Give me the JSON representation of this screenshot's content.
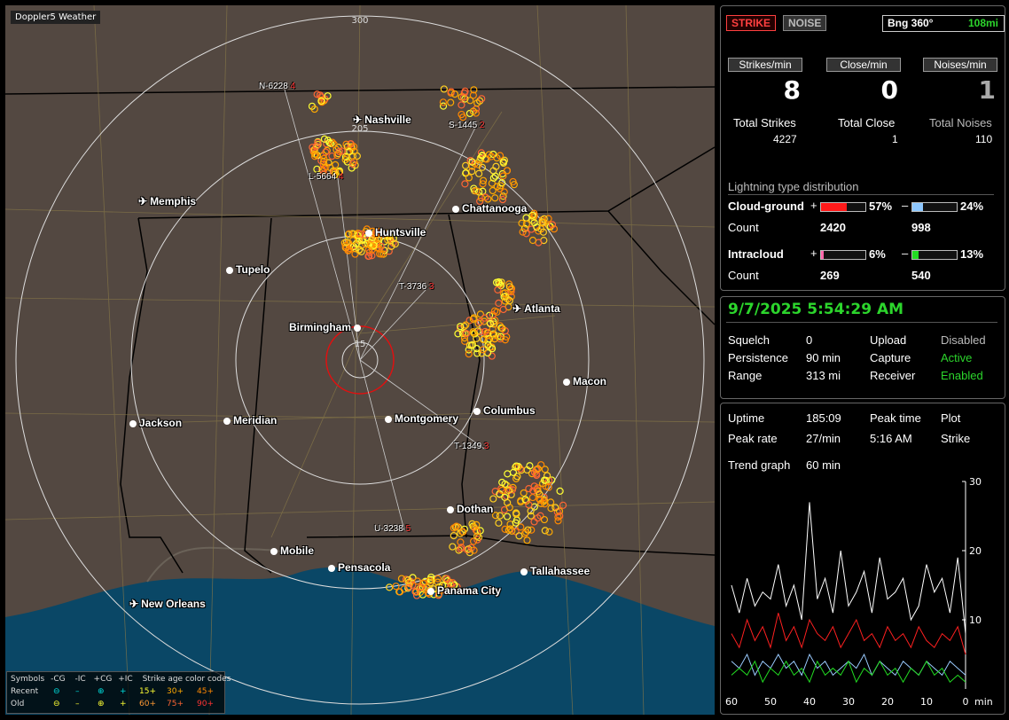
{
  "app": {
    "title": "Doppler5 Weather"
  },
  "map": {
    "range_labels": [
      "300",
      "205",
      "15"
    ],
    "cities": [
      {
        "name": "Nashville",
        "kind": "airport"
      },
      {
        "name": "Memphis",
        "kind": "airport"
      },
      {
        "name": "Chattanooga",
        "kind": "city"
      },
      {
        "name": "Huntsville",
        "kind": "city"
      },
      {
        "name": "Tupelo",
        "kind": "city"
      },
      {
        "name": "Atlanta",
        "kind": "airport"
      },
      {
        "name": "Birmingham",
        "kind": "city"
      },
      {
        "name": "Macon",
        "kind": "city"
      },
      {
        "name": "Jackson",
        "kind": "city"
      },
      {
        "name": "Meridian",
        "kind": "city"
      },
      {
        "name": "Montgomery",
        "kind": "city"
      },
      {
        "name": "Columbus",
        "kind": "city"
      },
      {
        "name": "Dothan",
        "kind": "city"
      },
      {
        "name": "Mobile",
        "kind": "city"
      },
      {
        "name": "Pensacola",
        "kind": "city"
      },
      {
        "name": "Tallahassee",
        "kind": "city"
      },
      {
        "name": "Panama City",
        "kind": "city"
      },
      {
        "name": "New Orleans",
        "kind": "airport"
      }
    ],
    "storm_tags": [
      {
        "id": "N-6228",
        "n": "4"
      },
      {
        "id": "S-1445",
        "n": "2"
      },
      {
        "id": "L-5664",
        "n": "4"
      },
      {
        "id": "T-3736",
        "n": "3"
      },
      {
        "id": "T-1349",
        "n": "3"
      },
      {
        "id": "U-3238",
        "n": "5"
      }
    ]
  },
  "legend": {
    "symbols_label": "Symbols",
    "cols": [
      "-CG",
      "-IC",
      "+CG",
      "+IC"
    ],
    "age_label": "Strike age color codes",
    "recent_label": "Recent",
    "old_label": "Old",
    "recent_ages": [
      "15+",
      "30+",
      "45+"
    ],
    "old_ages": [
      "60+",
      "75+",
      "90+"
    ],
    "age_colors": {
      "15+": "#ffff33",
      "30+": "#ffaa00",
      "45+": "#ff8800",
      "60+": "#ff9933",
      "75+": "#ff6633",
      "90+": "#ff3333"
    }
  },
  "stats": {
    "strike_btn": "STRIKE",
    "noise_btn": "NOISE",
    "bearing": "Bng 360°",
    "distance": "108mi",
    "strikes_per_min_label": "Strikes/min",
    "close_per_min_label": "Close/min",
    "noises_per_min_label": "Noises/min",
    "strikes_per_min": "8",
    "close_per_min": "0",
    "noises_per_min": "1",
    "total_strikes_label": "Total Strikes",
    "total_close_label": "Total Close",
    "total_noises_label": "Total Noises",
    "total_strikes": "4227",
    "total_close": "1",
    "total_noises": "110",
    "dist_title": "Lightning type distribution",
    "cg_label": "Cloud-ground",
    "ic_label": "Intracloud",
    "count_label": "Count",
    "plus": "+",
    "minus": "–",
    "cg_pos_pct": "57%",
    "cg_neg_pct": "24%",
    "cg_pos_count": "2420",
    "cg_neg_count": "998",
    "ic_pos_pct": "6%",
    "ic_neg_pct": "13%",
    "ic_pos_count": "269",
    "ic_neg_count": "540",
    "cg_pos_frac": 0.57,
    "cg_neg_frac": 0.24,
    "ic_pos_frac": 0.06,
    "ic_neg_frac": 0.13,
    "colors": {
      "cg_pos": "#ff1a1a",
      "cg_neg": "#8ec8ff",
      "ic_pos": "#ff66aa",
      "ic_neg": "#22dd22"
    }
  },
  "status": {
    "datetime": "9/7/2025 5:54:29 AM",
    "squelch_label": "Squelch",
    "squelch": "0",
    "persistence_label": "Persistence",
    "persistence": "90 min",
    "range_label": "Range",
    "range": "313 mi",
    "upload_label": "Upload",
    "upload": "Disabled",
    "capture_label": "Capture",
    "capture": "Active",
    "receiver_label": "Receiver",
    "receiver": "Enabled"
  },
  "trend": {
    "uptime_label": "Uptime",
    "uptime": "185:09",
    "peak_time_label": "Peak time",
    "peak_time": "5:16 AM",
    "plot_label": "Plot",
    "peak_rate_label": "Peak rate",
    "peak_rate": "27/min",
    "plot": "Strike",
    "trend_graph_label": "Trend graph",
    "trend_graph": "60 min"
  },
  "chart_data": {
    "type": "line",
    "x": [
      60,
      58,
      56,
      54,
      52,
      50,
      48,
      46,
      44,
      42,
      40,
      38,
      36,
      34,
      32,
      30,
      28,
      26,
      24,
      22,
      20,
      18,
      16,
      14,
      12,
      10,
      8,
      6,
      4,
      2,
      0
    ],
    "x_ticks": [
      "60",
      "50",
      "40",
      "30",
      "20",
      "10",
      "0"
    ],
    "x_unit": "min",
    "y_ticks": [
      "30",
      "20",
      "10"
    ],
    "ylim": [
      0,
      30
    ],
    "series": [
      {
        "color": "#ffffff",
        "values": [
          15,
          11,
          16,
          12,
          14,
          13,
          18,
          12,
          15,
          10,
          27,
          13,
          16,
          11,
          20,
          12,
          14,
          17,
          11,
          19,
          13,
          14,
          16,
          10,
          12,
          18,
          14,
          16,
          11,
          19,
          8
        ]
      },
      {
        "color": "#ff2020",
        "values": [
          8,
          6,
          10,
          7,
          9,
          6,
          11,
          7,
          9,
          6,
          10,
          8,
          7,
          9,
          6,
          8,
          10,
          7,
          8,
          6,
          9,
          7,
          8,
          6,
          9,
          7,
          6,
          8,
          7,
          9,
          5
        ]
      },
      {
        "color": "#9acbff",
        "values": [
          4,
          3,
          5,
          2,
          4,
          3,
          5,
          3,
          4,
          2,
          5,
          3,
          4,
          2,
          3,
          4,
          3,
          5,
          2,
          4,
          3,
          2,
          4,
          3,
          2,
          4,
          3,
          2,
          4,
          3,
          2
        ]
      },
      {
        "color": "#22dd22",
        "values": [
          2,
          3,
          2,
          4,
          1,
          3,
          2,
          4,
          2,
          3,
          1,
          4,
          2,
          3,
          2,
          4,
          1,
          3,
          2,
          4,
          2,
          3,
          1,
          3,
          2,
          4,
          2,
          3,
          1,
          2,
          1
        ]
      }
    ]
  }
}
